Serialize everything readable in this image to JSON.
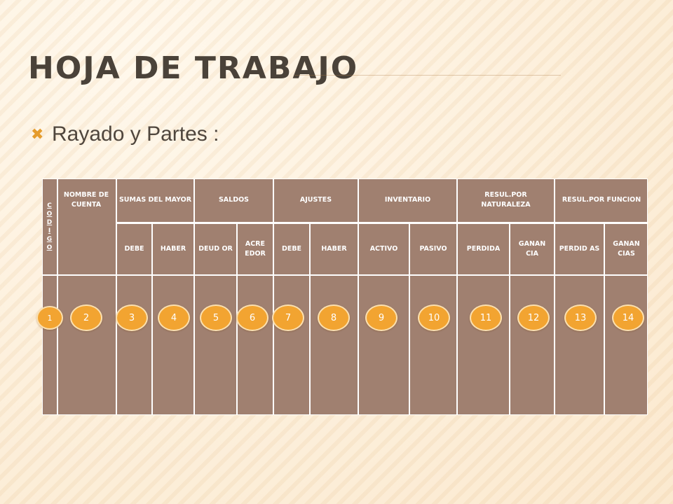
{
  "slide": {
    "title": "HOJA DE TRABAJO",
    "bullet": "Rayado y Partes :",
    "bullet_icon": "x-mark-bullet-icon",
    "accent_color": "#e59c2d"
  },
  "table": {
    "background_color": "#a08070",
    "codigo": "C\nO\nD\nI\nG\nO",
    "headers": [
      "NOMBRE DE CUENTA",
      "SUMAS DEL MAYOR",
      "SALDOS",
      "AJUSTES",
      "INVENTARIO",
      "RESUL.POR NATURALEZA",
      "RESUL.POR FUNCION"
    ],
    "subheaders": [
      "DEBE",
      "HABER",
      "DEUD OR",
      "ACRE EDOR",
      "DEBE",
      "HABER",
      "ACTIVO",
      "PASIVO",
      "PERDIDA",
      "GANAN CIA",
      "PERDID AS",
      "GANAN CIAS"
    ]
  },
  "markers": [
    "1",
    "2",
    "3",
    "4",
    "5",
    "6",
    "7",
    "8",
    "9",
    "10",
    "11",
    "12",
    "13",
    "14"
  ]
}
